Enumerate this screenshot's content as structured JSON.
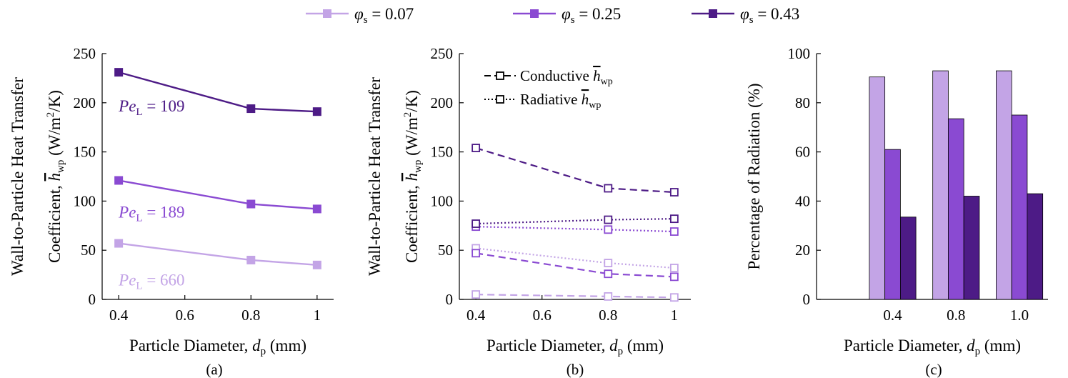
{
  "colors": {
    "phi_007": "#c3a4e6",
    "phi_025": "#8a4ad2",
    "phi_043": "#4d1b86",
    "axis": "#000000"
  },
  "legend": {
    "entries": [
      {
        "symbol": "φ",
        "sub": "s",
        "rest": " = 0.07",
        "color_key": "phi_007"
      },
      {
        "symbol": "φ",
        "sub": "s",
        "rest": " = 0.25",
        "color_key": "phi_025"
      },
      {
        "symbol": "φ",
        "sub": "s",
        "rest": " = 0.43",
        "color_key": "phi_043"
      }
    ]
  },
  "chart_data": [
    {
      "type": "line",
      "caption": "(a)",
      "title": "",
      "xlabel": {
        "main": "Particle Diameter, ",
        "var": "d",
        "sub": "p",
        "unit": " (mm)"
      },
      "ylabel": {
        "line1": "Wall-to-Particle Heat Transfer",
        "line2_pre": "Coefficient, ",
        "var": "h",
        "sub": "wp",
        "unit_pre": " (W/m",
        "sup": "2",
        "unit_post": "/K)"
      },
      "x": [
        0.4,
        0.8,
        1.0
      ],
      "xlim": [
        0.35,
        1.05
      ],
      "ylim": [
        0,
        250
      ],
      "xticks": [
        0.4,
        0.6,
        0.8,
        1.0
      ],
      "xtick_labels": [
        "0.4",
        "0.6",
        "0.8",
        "1"
      ],
      "yticks": [
        0,
        50,
        100,
        150,
        200,
        250
      ],
      "ytick_labels": [
        "0",
        "50",
        "100",
        "150",
        "200",
        "250"
      ],
      "series": [
        {
          "name": "φs = 0.07",
          "color_key": "phi_007",
          "values": [
            57,
            40,
            35
          ],
          "style": "solid",
          "marker": "filled-square"
        },
        {
          "name": "φs = 0.25",
          "color_key": "phi_025",
          "values": [
            121,
            97,
            92
          ],
          "style": "solid",
          "marker": "filled-square"
        },
        {
          "name": "φs = 0.43",
          "color_key": "phi_043",
          "values": [
            231,
            194,
            191
          ],
          "style": "solid",
          "marker": "filled-square"
        }
      ],
      "annotations": [
        {
          "var": "Pe",
          "sub": "L",
          "rest": " = 109",
          "color_key": "phi_043",
          "at_x": 0.4,
          "at_y": 197
        },
        {
          "var": "Pe",
          "sub": "L",
          "rest": " = 189",
          "color_key": "phi_025",
          "at_x": 0.4,
          "at_y": 89
        },
        {
          "var": "Pe",
          "sub": "L",
          "rest": " = 660",
          "color_key": "phi_007",
          "at_x": 0.4,
          "at_y": 20
        }
      ]
    },
    {
      "type": "line",
      "caption": "(b)",
      "title": "",
      "xlabel": {
        "main": "Particle Diameter, ",
        "var": "d",
        "sub": "p",
        "unit": " (mm)"
      },
      "ylabel": {
        "line1": "Wall-to-Particle Heat Transfer",
        "line2_pre": "Coefficient, ",
        "var": "h",
        "sub": "wp",
        "unit_pre": " (W/m",
        "sup": "2",
        "unit_post": "/K)"
      },
      "x": [
        0.4,
        0.8,
        1.0
      ],
      "xlim": [
        0.35,
        1.05
      ],
      "ylim": [
        0,
        250
      ],
      "xticks": [
        0.4,
        0.6,
        0.8,
        1.0
      ],
      "xtick_labels": [
        "0.4",
        "0.6",
        "0.8",
        "1"
      ],
      "yticks": [
        0,
        50,
        100,
        150,
        200,
        250
      ],
      "ytick_labels": [
        "0",
        "50",
        "100",
        "150",
        "200",
        "250"
      ],
      "style_legend": [
        {
          "label": "Conductive ",
          "var": "h",
          "sub": "wp",
          "style": "dashed"
        },
        {
          "label": "Radiative ",
          "var": "h",
          "sub": "wp",
          "style": "dotted"
        }
      ],
      "series": [
        {
          "name": "Conductive, φs = 0.07",
          "color_key": "phi_007",
          "values": [
            5,
            3,
            2
          ],
          "style": "dashed",
          "marker": "open-square"
        },
        {
          "name": "Radiative, φs = 0.07",
          "color_key": "phi_007",
          "values": [
            52,
            37,
            32
          ],
          "style": "dotted",
          "marker": "open-square"
        },
        {
          "name": "Conductive, φs = 0.25",
          "color_key": "phi_025",
          "values": [
            47,
            26,
            23
          ],
          "style": "dashed",
          "marker": "open-square"
        },
        {
          "name": "Radiative, φs = 0.25",
          "color_key": "phi_025",
          "values": [
            74,
            71,
            69
          ],
          "style": "dotted",
          "marker": "open-square"
        },
        {
          "name": "Conductive, φs = 0.43",
          "color_key": "phi_043",
          "values": [
            154,
            113,
            109
          ],
          "style": "dashed",
          "marker": "open-square"
        },
        {
          "name": "Radiative, φs = 0.43",
          "color_key": "phi_043",
          "values": [
            77,
            81,
            82
          ],
          "style": "dotted",
          "marker": "open-square"
        }
      ]
    },
    {
      "type": "bar",
      "caption": "(c)",
      "title": "",
      "xlabel": {
        "main": "Particle Diameter, ",
        "var": "d",
        "sub": "p",
        "unit": " (mm)"
      },
      "ylabel": {
        "text": "Percentage of Radiation (%)"
      },
      "categories": [
        "0.4",
        "0.8",
        "1.0"
      ],
      "xlim": [
        -0.2,
        3.45
      ],
      "ylim": [
        0,
        100
      ],
      "yticks": [
        0,
        20,
        40,
        60,
        80,
        100
      ],
      "ytick_labels": [
        "0",
        "20",
        "40",
        "60",
        "80",
        "100"
      ],
      "series": [
        {
          "name": "φs = 0.07",
          "color_key": "phi_007",
          "values": [
            90.5,
            93,
            93
          ]
        },
        {
          "name": "φs = 0.25",
          "color_key": "phi_025",
          "values": [
            61,
            73.5,
            75
          ]
        },
        {
          "name": "φs = 0.43",
          "color_key": "phi_043",
          "values": [
            33.5,
            42,
            43
          ]
        }
      ]
    }
  ]
}
